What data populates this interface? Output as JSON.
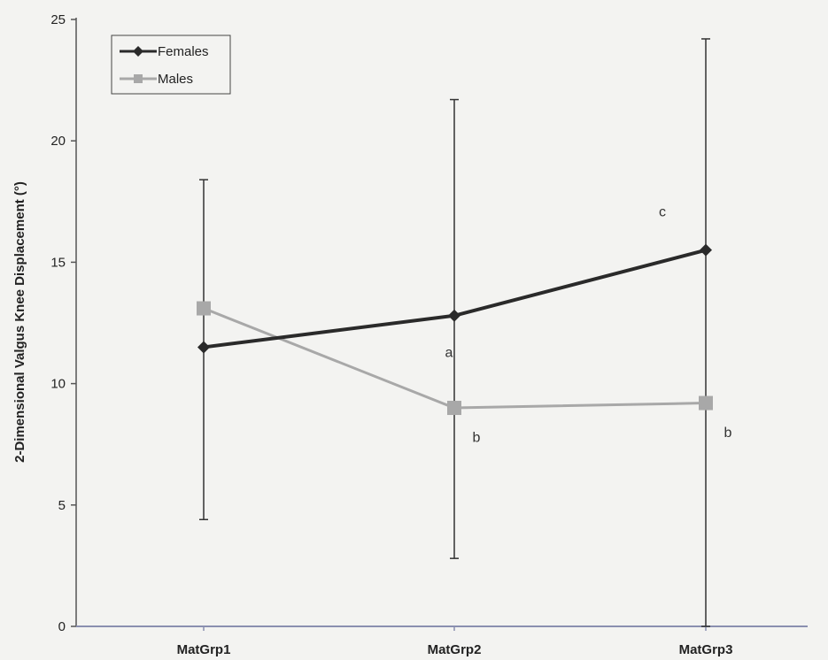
{
  "chart_data": {
    "type": "line",
    "categories": [
      "MatGrp1",
      "MatGrp2",
      "MatGrp3"
    ],
    "ylabel": "2-Dimensional Valgus Knee Displacement (°)",
    "xlabel": "",
    "ylim": [
      0,
      25
    ],
    "yticks": [
      0,
      5,
      10,
      15,
      20,
      25
    ],
    "grid": false,
    "legend_position": "top-left",
    "series": [
      {
        "name": "Females",
        "values": [
          11.5,
          12.8,
          15.5
        ],
        "error_upper": [
          18.4,
          21.7,
          24.2
        ],
        "error_lower": [
          4.4,
          2.8,
          0
        ],
        "color": "#2a2a2a",
        "marker": "diamond"
      },
      {
        "name": "Males",
        "values": [
          13.1,
          9.0,
          9.2
        ],
        "color": "#a8a8a8",
        "marker": "square"
      }
    ],
    "annotations": [
      {
        "text": "a",
        "category": "MatGrp2",
        "y": 11.1
      },
      {
        "text": "b",
        "category": "MatGrp2",
        "y": 7.6
      },
      {
        "text": "c",
        "category": "MatGrp3",
        "y": 16.9
      },
      {
        "text": "b",
        "category": "MatGrp3",
        "y": 7.8
      }
    ]
  }
}
